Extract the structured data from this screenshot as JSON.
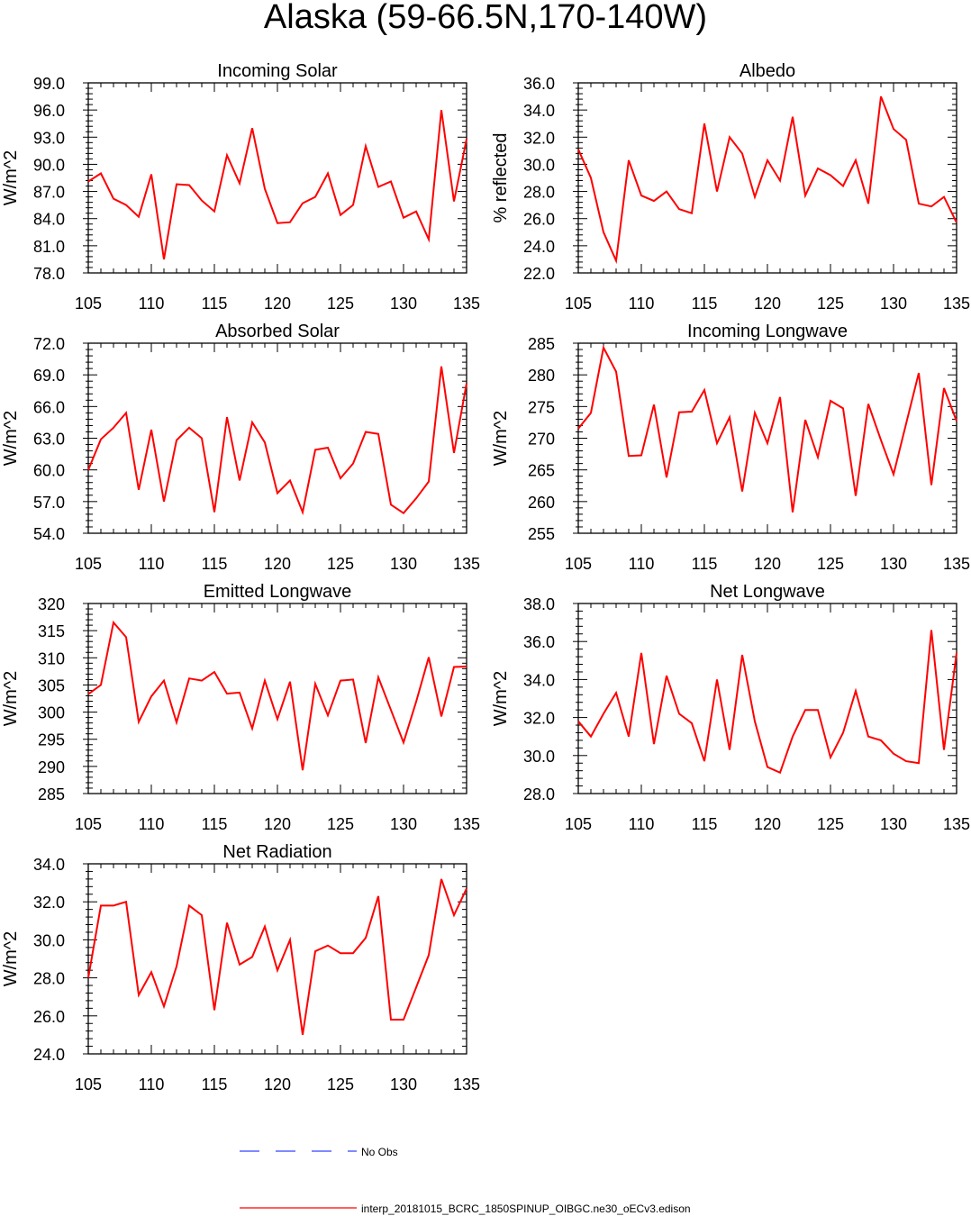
{
  "title": "Alaska (59-66.5N,170-140W)",
  "colors": {
    "model": "#ff0000",
    "obs": "#3344ff"
  },
  "legend": {
    "obs_label": "No Obs",
    "model_label": "interp_20181015_BCRC_1850SPINUP_OIBGC.ne30_oECv3.edison"
  },
  "chart_data": [
    {
      "type": "line",
      "title": "Incoming Solar",
      "ylabel": "W/m^2",
      "xlim": [
        105,
        135
      ],
      "ylim": [
        78,
        99
      ],
      "xticks": [
        "105",
        "110",
        "115",
        "120",
        "125",
        "130",
        "135"
      ],
      "yticks": [
        "78.0",
        "81.0",
        "84.0",
        "87.0",
        "90.0",
        "93.0",
        "96.0",
        "99.0"
      ],
      "x": [
        105,
        106,
        107,
        108,
        109,
        110,
        111,
        112,
        113,
        114,
        115,
        116,
        117,
        118,
        119,
        120,
        121,
        122,
        123,
        124,
        125,
        126,
        127,
        128,
        129,
        130,
        131,
        132,
        133,
        134,
        135
      ],
      "values": [
        88.1,
        89.0,
        86.2,
        85.5,
        84.2,
        88.9,
        79.5,
        87.8,
        87.7,
        86.0,
        84.8,
        91.0,
        87.9,
        94.0,
        87.3,
        83.5,
        83.6,
        85.7,
        86.4,
        89.0,
        84.4,
        85.5,
        92.0,
        87.5,
        88.1,
        84.1,
        84.8,
        81.7,
        96.0,
        85.9,
        92.8
      ],
      "series_name": ""
    },
    {
      "type": "line",
      "title": "Albedo",
      "ylabel": "% reflected",
      "xlim": [
        105,
        135
      ],
      "ylim": [
        22,
        36
      ],
      "xticks": [
        "105",
        "110",
        "115",
        "120",
        "125",
        "130",
        "135"
      ],
      "yticks": [
        "22.0",
        "24.0",
        "26.0",
        "28.0",
        "30.0",
        "32.0",
        "34.0",
        "36.0"
      ],
      "x": [
        105,
        106,
        107,
        108,
        109,
        110,
        111,
        112,
        113,
        114,
        115,
        116,
        117,
        118,
        119,
        120,
        121,
        122,
        123,
        124,
        125,
        126,
        127,
        128,
        129,
        130,
        131,
        132,
        133,
        134,
        135
      ],
      "values": [
        31.1,
        29.0,
        25.0,
        22.9,
        30.3,
        27.7,
        27.3,
        28.0,
        26.7,
        26.4,
        33.0,
        28.0,
        32.0,
        30.8,
        27.6,
        30.3,
        28.8,
        33.5,
        27.7,
        29.7,
        29.2,
        28.4,
        30.3,
        27.1,
        35.0,
        32.6,
        31.8,
        27.1,
        26.9,
        27.6,
        25.7
      ]
    },
    {
      "type": "line",
      "title": "Absorbed Solar",
      "ylabel": "W/m^2",
      "xlim": [
        105,
        135
      ],
      "ylim": [
        54,
        72
      ],
      "xticks": [
        "105",
        "110",
        "115",
        "120",
        "125",
        "130",
        "135"
      ],
      "yticks": [
        "54.0",
        "57.0",
        "60.0",
        "63.0",
        "66.0",
        "69.0",
        "72.0"
      ],
      "x": [
        105,
        106,
        107,
        108,
        109,
        110,
        111,
        112,
        113,
        114,
        115,
        116,
        117,
        118,
        119,
        120,
        121,
        122,
        123,
        124,
        125,
        126,
        127,
        128,
        129,
        130,
        131,
        132,
        133,
        134,
        135
      ],
      "values": [
        60.0,
        62.9,
        64.0,
        65.4,
        58.1,
        63.8,
        57.0,
        62.8,
        64.0,
        63.0,
        56.0,
        65.0,
        59.0,
        64.5,
        62.6,
        57.8,
        59.0,
        56.0,
        61.9,
        62.1,
        59.2,
        60.6,
        63.6,
        63.4,
        56.7,
        55.9,
        57.3,
        58.9,
        69.8,
        61.6,
        68.2
      ]
    },
    {
      "type": "line",
      "title": "Incoming Longwave",
      "ylabel": "W/m^2",
      "xlim": [
        105,
        135
      ],
      "ylim": [
        255,
        285
      ],
      "xticks": [
        "105",
        "110",
        "115",
        "120",
        "125",
        "130",
        "135"
      ],
      "yticks": [
        "255",
        "260",
        "265",
        "270",
        "275",
        "280",
        "285"
      ],
      "x": [
        105,
        106,
        107,
        108,
        109,
        110,
        111,
        112,
        113,
        114,
        115,
        116,
        117,
        118,
        119,
        120,
        121,
        122,
        123,
        124,
        125,
        126,
        127,
        128,
        129,
        130,
        131,
        132,
        133,
        134,
        135
      ],
      "values": [
        271.5,
        274.0,
        284.3,
        280.5,
        267.2,
        267.3,
        275.3,
        263.8,
        274.1,
        274.2,
        277.6,
        269.2,
        273.3,
        261.6,
        274.0,
        269.2,
        276.5,
        258.3,
        272.9,
        267.0,
        275.9,
        274.7,
        260.9,
        275.4,
        269.7,
        264.3,
        272.3,
        280.3,
        262.6,
        277.9,
        272.7
      ]
    },
    {
      "type": "line",
      "title": "Emitted Longwave",
      "ylabel": "W/m^2",
      "xlim": [
        105,
        135
      ],
      "ylim": [
        285,
        320
      ],
      "xticks": [
        "105",
        "110",
        "115",
        "120",
        "125",
        "130",
        "135"
      ],
      "yticks": [
        "285",
        "290",
        "295",
        "300",
        "305",
        "310",
        "315",
        "320"
      ],
      "x": [
        105,
        106,
        107,
        108,
        109,
        110,
        111,
        112,
        113,
        114,
        115,
        116,
        117,
        118,
        119,
        120,
        121,
        122,
        123,
        124,
        125,
        126,
        127,
        128,
        129,
        130,
        131,
        132,
        133,
        134,
        135
      ],
      "values": [
        303.3,
        305.0,
        316.5,
        313.8,
        298.2,
        302.9,
        305.8,
        298.1,
        306.2,
        305.8,
        307.4,
        303.4,
        303.6,
        297.0,
        305.8,
        298.7,
        305.6,
        289.3,
        305.2,
        299.4,
        305.8,
        306.0,
        294.3,
        306.4,
        300.4,
        294.4,
        301.9,
        310.1,
        299.2,
        308.3,
        308.4
      ]
    },
    {
      "type": "line",
      "title": "Net Longwave",
      "ylabel": "W/m^2",
      "xlim": [
        105,
        135
      ],
      "ylim": [
        28,
        38
      ],
      "xticks": [
        "105",
        "110",
        "115",
        "120",
        "125",
        "130",
        "135"
      ],
      "yticks": [
        "28.0",
        "30.0",
        "32.0",
        "34.0",
        "36.0",
        "38.0"
      ],
      "x": [
        105,
        106,
        107,
        108,
        109,
        110,
        111,
        112,
        113,
        114,
        115,
        116,
        117,
        118,
        119,
        120,
        121,
        122,
        123,
        124,
        125,
        126,
        127,
        128,
        129,
        130,
        131,
        132,
        133,
        134,
        135
      ],
      "values": [
        31.8,
        31.0,
        32.2,
        33.3,
        31.0,
        35.4,
        30.6,
        34.2,
        32.2,
        31.7,
        29.7,
        34.0,
        30.3,
        35.3,
        31.8,
        29.4,
        29.1,
        31.0,
        32.4,
        32.4,
        29.9,
        31.2,
        33.4,
        31.0,
        30.8,
        30.1,
        29.7,
        29.6,
        36.6,
        30.3,
        35.4
      ]
    },
    {
      "type": "line",
      "title": "Net Radiation",
      "ylabel": "W/m^2",
      "xlim": [
        105,
        135
      ],
      "ylim": [
        24,
        34
      ],
      "xticks": [
        "105",
        "110",
        "115",
        "120",
        "125",
        "130",
        "135"
      ],
      "yticks": [
        "24.0",
        "26.0",
        "28.0",
        "30.0",
        "32.0",
        "34.0"
      ],
      "x": [
        105,
        106,
        107,
        108,
        109,
        110,
        111,
        112,
        113,
        114,
        115,
        116,
        117,
        118,
        119,
        120,
        121,
        122,
        123,
        124,
        125,
        126,
        127,
        128,
        129,
        130,
        131,
        132,
        133,
        134,
        135
      ],
      "values": [
        28.0,
        31.8,
        31.8,
        32.0,
        27.1,
        28.3,
        26.5,
        28.6,
        31.8,
        31.3,
        26.3,
        30.9,
        28.7,
        29.1,
        30.7,
        28.4,
        30.0,
        25.0,
        29.4,
        29.7,
        29.3,
        29.3,
        30.1,
        32.3,
        25.8,
        25.8,
        27.5,
        29.2,
        33.2,
        31.3,
        32.7
      ]
    }
  ]
}
